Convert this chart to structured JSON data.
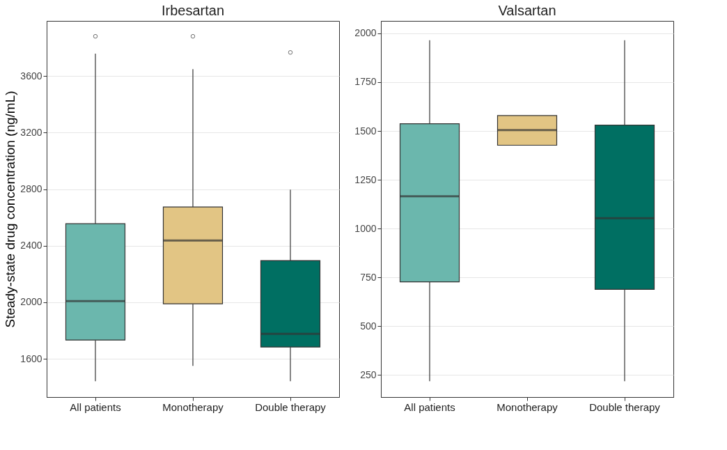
{
  "chart_data": [
    {
      "type": "box",
      "title": "Irbesartan",
      "ylabel": "Steady-state drug concentration (ng/mL)",
      "categories": [
        "All patients",
        "Monotherapy",
        "Double therapy"
      ],
      "colors": [
        "#6bb7ad",
        "#e2c584",
        "#006f62"
      ],
      "boxes": [
        {
          "low": 1442,
          "q1": 1733,
          "median": 2009,
          "q3": 2556,
          "high": 3758,
          "outliers": [
            3881
          ]
        },
        {
          "low": 1551,
          "q1": 1989,
          "median": 2437,
          "q3": 2674,
          "high": 3649,
          "outliers": [
            3881
          ]
        },
        {
          "low": 1442,
          "q1": 1684,
          "median": 1777,
          "q3": 2295,
          "high": 2797,
          "outliers": [
            3767
          ]
        }
      ],
      "ylim": [
        1330,
        3990
      ],
      "yticks": [
        1600,
        2000,
        2400,
        2800,
        3200,
        3600
      ],
      "grid": "y"
    },
    {
      "type": "box",
      "title": "Valsartan",
      "categories": [
        "All patients",
        "Monotherapy",
        "Double therapy"
      ],
      "colors": [
        "#6bb7ad",
        "#e2c584",
        "#006f62"
      ],
      "boxes": [
        {
          "low": 218,
          "q1": 727,
          "median": 1166,
          "q3": 1537,
          "high": 1965
        },
        {
          "low": 1427,
          "q1": 1427,
          "median": 1505,
          "q3": 1579,
          "high": 1579
        },
        {
          "low": 218,
          "q1": 689,
          "median": 1053,
          "q3": 1530,
          "high": 1965
        }
      ],
      "ylim": [
        137,
        2064
      ],
      "yticks": [
        250,
        500,
        750,
        1000,
        1250,
        1500,
        1750,
        2000
      ],
      "grid": "y"
    }
  ]
}
